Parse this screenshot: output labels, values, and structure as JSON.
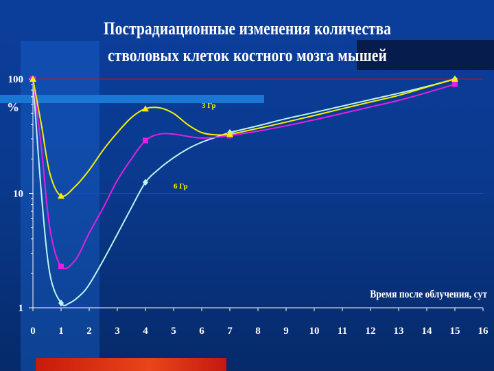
{
  "slide": {
    "title_line1": "Пострадиационные изменения количества",
    "title_line2": "стволовых клеток костного мозга мышей"
  },
  "colors": {
    "background": "#0a3a8f",
    "axis": "#ffffff",
    "reference_lines": "#c0181a",
    "accent_bar": "#e0401a"
  },
  "chart_data": {
    "type": "line",
    "title": "Пострадиационные изменения количества стволовых клеток костного мозга мышей",
    "xlabel": "Время после облучения, сут",
    "ylabel": "%",
    "yscale": "log",
    "xlim": [
      0,
      16
    ],
    "ylim": [
      1,
      100
    ],
    "x_ticks": [
      "0",
      "1",
      "2",
      "3",
      "4",
      "5",
      "6",
      "7",
      "8",
      "9",
      "10",
      "11",
      "12",
      "13",
      "14",
      "15",
      "16"
    ],
    "y_ticks": [
      "1",
      "10",
      "100"
    ],
    "reference_lines_y": [
      10,
      100
    ],
    "annotations": [
      {
        "text": "3 Гр",
        "x": 6.0,
        "y": 56,
        "color": "#f6f000"
      },
      {
        "text": "6 Гр",
        "x": 5.0,
        "y": 11,
        "color": "#f6f000"
      }
    ],
    "series": [
      {
        "name": "",
        "color": "#f6f000",
        "marker": "triangle",
        "points": [
          [
            0,
            100
          ],
          [
            1,
            9.5
          ],
          [
            4,
            55
          ],
          [
            7,
            33
          ],
          [
            15,
            100
          ]
        ],
        "curve": [
          [
            0,
            100
          ],
          [
            0.3,
            40
          ],
          [
            0.6,
            15
          ],
          [
            1,
            9.5
          ],
          [
            1.5,
            11.5
          ],
          [
            2,
            16
          ],
          [
            2.5,
            24
          ],
          [
            3,
            34
          ],
          [
            3.5,
            46
          ],
          [
            4,
            55
          ],
          [
            4.5,
            56
          ],
          [
            5,
            50
          ],
          [
            5.5,
            40
          ],
          [
            6,
            34
          ],
          [
            6.5,
            32.5
          ],
          [
            7,
            33
          ],
          [
            8,
            37
          ],
          [
            9,
            42
          ],
          [
            10,
            48
          ],
          [
            11,
            55
          ],
          [
            12,
            63
          ],
          [
            13,
            72
          ],
          [
            14,
            85
          ],
          [
            15,
            100
          ]
        ]
      },
      {
        "name": "",
        "color": "#e61ee6",
        "marker": "square",
        "points": [
          [
            0,
            100
          ],
          [
            1,
            2.3
          ],
          [
            4,
            29
          ],
          [
            7,
            32
          ],
          [
            15,
            90
          ]
        ],
        "curve": [
          [
            0,
            100
          ],
          [
            0.3,
            25
          ],
          [
            0.6,
            5
          ],
          [
            1,
            2.3
          ],
          [
            1.5,
            2.6
          ],
          [
            2,
            4.5
          ],
          [
            2.5,
            7.5
          ],
          [
            3,
            13
          ],
          [
            3.5,
            20
          ],
          [
            4,
            29
          ],
          [
            4.5,
            33
          ],
          [
            5,
            33
          ],
          [
            5.5,
            31.5
          ],
          [
            6,
            30.5
          ],
          [
            6.5,
            31
          ],
          [
            7,
            32
          ],
          [
            8,
            35
          ],
          [
            9,
            39
          ],
          [
            10,
            44
          ],
          [
            11,
            50
          ],
          [
            12,
            57
          ],
          [
            13,
            65
          ],
          [
            14,
            76
          ],
          [
            15,
            90
          ]
        ]
      },
      {
        "name": "",
        "color": "#bff4f6",
        "marker": "diamond",
        "points": [
          [
            0,
            100
          ],
          [
            1,
            1.1
          ],
          [
            4,
            12.5
          ],
          [
            7,
            34
          ],
          [
            15,
            100
          ]
        ],
        "curve": [
          [
            0,
            100
          ],
          [
            0.3,
            10
          ],
          [
            0.6,
            2
          ],
          [
            1,
            1.1
          ],
          [
            1.3,
            1.1
          ],
          [
            1.7,
            1.3
          ],
          [
            2,
            1.6
          ],
          [
            2.5,
            2.6
          ],
          [
            3,
            4.4
          ],
          [
            3.5,
            7.5
          ],
          [
            4,
            12.5
          ],
          [
            4.5,
            16.5
          ],
          [
            5,
            20.5
          ],
          [
            5.5,
            24.5
          ],
          [
            6,
            28
          ],
          [
            6.5,
            31
          ],
          [
            7,
            34
          ],
          [
            8,
            39
          ],
          [
            9,
            45
          ],
          [
            10,
            51
          ],
          [
            11,
            58
          ],
          [
            12,
            66
          ],
          [
            13,
            75
          ],
          [
            14,
            86
          ],
          [
            15,
            100
          ]
        ]
      }
    ]
  }
}
